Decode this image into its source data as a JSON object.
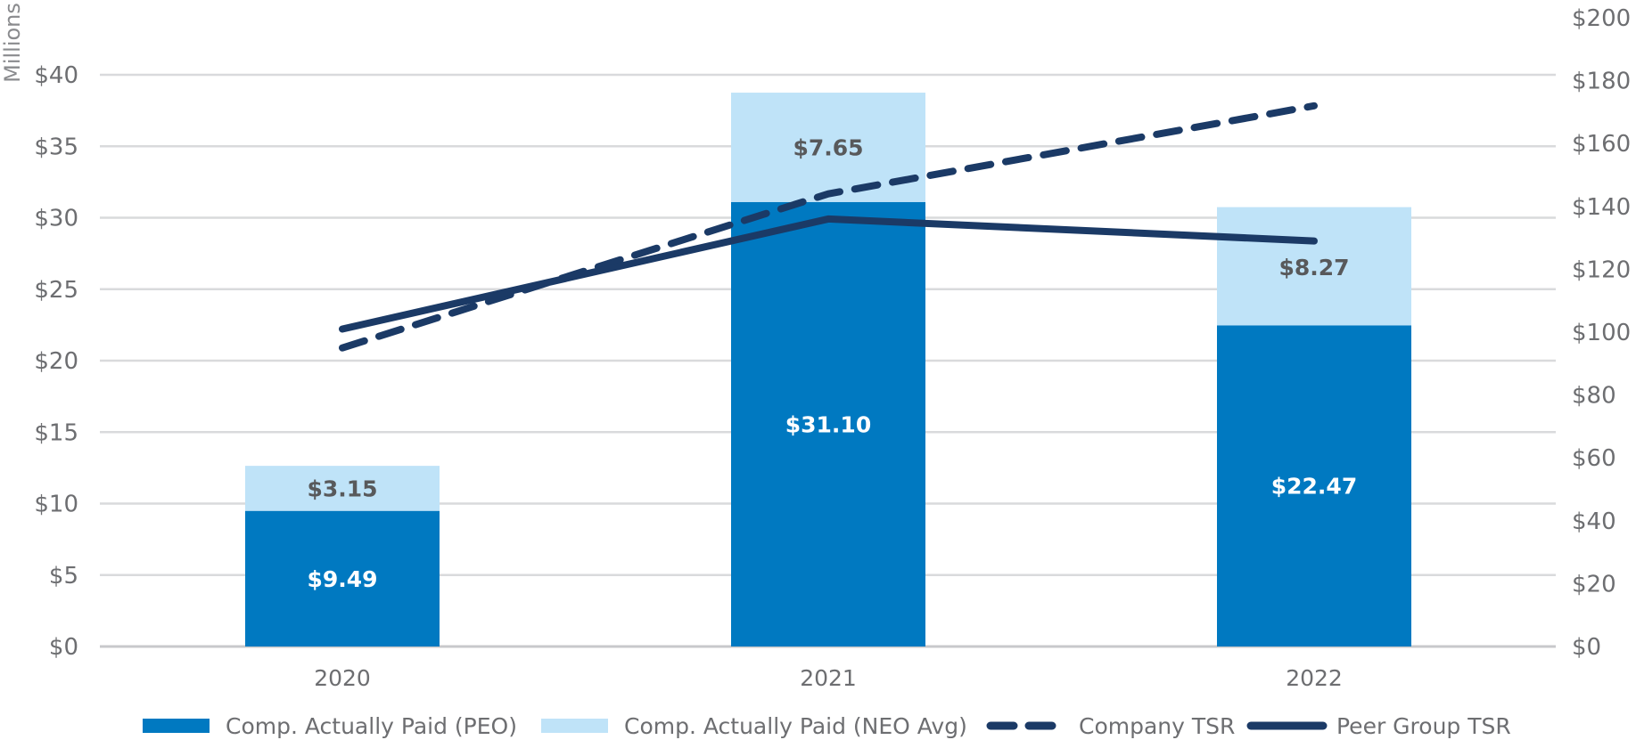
{
  "chart_data": {
    "type": "bar",
    "stacked": true,
    "categories": [
      "2020",
      "2021",
      "2022"
    ],
    "y_unit_label": "Millions",
    "ylim": [
      0,
      40
    ],
    "y_ticks": [
      0,
      5,
      10,
      15,
      20,
      25,
      30,
      35,
      40
    ],
    "y_tick_labels": [
      "$0",
      "$5",
      "$10",
      "$15",
      "$20",
      "$25",
      "$30",
      "$35",
      "$40"
    ],
    "y2lim": [
      0,
      200
    ],
    "y2_ticks": [
      0,
      20,
      40,
      60,
      80,
      100,
      120,
      140,
      160,
      180,
      200
    ],
    "y2_tick_labels": [
      "$0",
      "$20",
      "$40",
      "$60",
      "$80",
      "$100",
      "$120",
      "$140",
      "$160",
      "$180",
      "$200"
    ],
    "series": [
      {
        "name": "Comp. Actually Paid (PEO)",
        "kind": "bar",
        "axis": "left",
        "values": [
          9.49,
          31.1,
          22.47
        ],
        "labels": [
          "$9.49",
          "$31.10",
          "$22.47"
        ],
        "color": "#0079c1"
      },
      {
        "name": "Comp. Actually Paid (NEO Avg)",
        "kind": "bar",
        "axis": "left",
        "values": [
          3.15,
          7.65,
          8.27
        ],
        "labels": [
          "$3.15",
          "$7.65",
          "$8.27"
        ],
        "color": "#bfe3f8"
      },
      {
        "name": "Company TSR",
        "kind": "line",
        "style": "dashed",
        "axis": "right",
        "values": [
          95,
          144,
          172
        ],
        "color": "#1b3a66"
      },
      {
        "name": "Peer Group TSR",
        "kind": "line",
        "style": "solid",
        "axis": "right",
        "values": [
          101,
          136,
          129
        ],
        "color": "#1b3a66"
      }
    ],
    "legend_position": "bottom"
  }
}
